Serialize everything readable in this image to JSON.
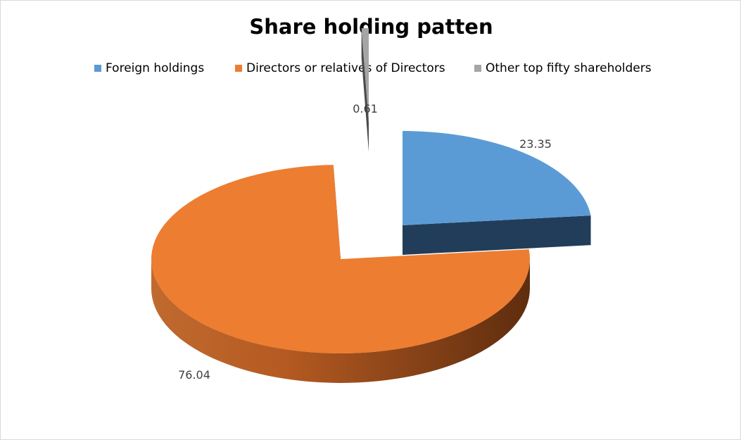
{
  "chart_data": {
    "type": "pie",
    "title": "Share holding patten",
    "legend_position": "top",
    "three_d": true,
    "exploded": true,
    "series": [
      {
        "name": "",
        "slices": [
          {
            "label": "Foreign holdings",
            "value": 23.35,
            "data_label": "23.35",
            "color": "#5b9bd5",
            "dark_color": "#223d5a"
          },
          {
            "label": "Directors or relatives of Directors",
            "value": 76.04,
            "data_label": "76.04",
            "color": "#ed7d31",
            "dark_color": "#7b3410"
          },
          {
            "label": "Other top fifty shareholders",
            "value": 0.61,
            "data_label": "0.61",
            "color": "#a5a5a5",
            "dark_color": "#4a4a4a"
          }
        ]
      }
    ]
  }
}
